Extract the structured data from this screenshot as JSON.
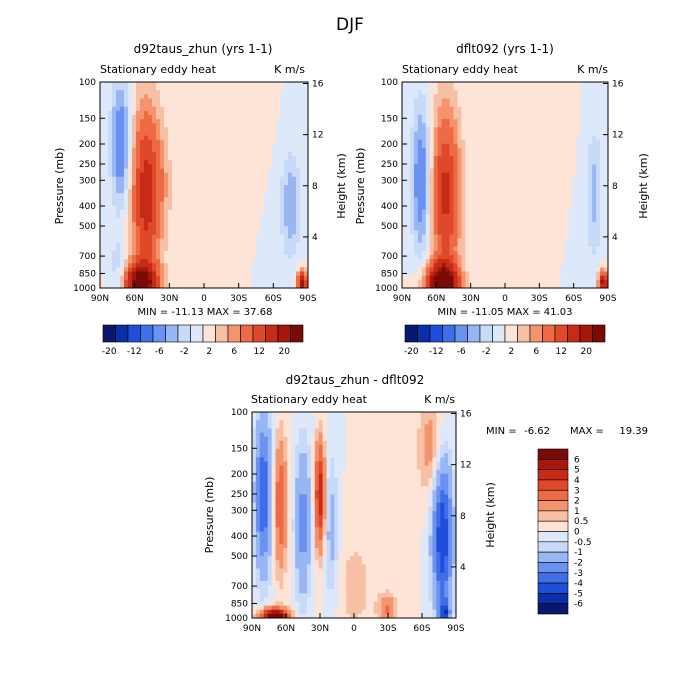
{
  "figure_title": "DJF",
  "stats_diff": {
    "min_label": "MIN = ",
    "min": "-6.62",
    "max_label": "MAX = ",
    "max": "19.39"
  },
  "colors": {
    "blues": [
      "#08186e",
      "#0a2fa8",
      "#1f4fd8",
      "#3f6ee8",
      "#6a92f0",
      "#98b6f4",
      "#c8daf8"
    ],
    "neutral_neg": "#dde8fb",
    "neutral_pos": "#fde4d6",
    "reds": [
      "#f7c0a4",
      "#f4946c",
      "#ee6a45",
      "#e0482a",
      "#c82b15",
      "#a5170b",
      "#7a0a05"
    ]
  },
  "chart_data": [
    {
      "type": "heatmap",
      "id": "d92",
      "title": "d92taus_zhun (yrs 1-1)",
      "subtitle_left": "Stationary eddy heat",
      "subtitle_right": "K m/s",
      "xlabel": "",
      "ylabel": "Pressure (mb)",
      "y2label": "Height (km)",
      "x_ticks": [
        "90N",
        "60N",
        "30N",
        "0",
        "30S",
        "60S",
        "90S"
      ],
      "y_ticks": [
        "100",
        "150",
        "200",
        "250",
        "300",
        "400",
        "500",
        "700",
        "850",
        "1000"
      ],
      "y2_ticks": [
        "16",
        "12",
        "8",
        "4"
      ],
      "xlim": [
        90,
        -90
      ],
      "ylim": [
        1000,
        100
      ],
      "stats": "MIN = -11.13   MAX = 37.68",
      "colorbar_ticks": [
        "-20",
        "-12",
        "-6",
        "-2",
        "2",
        "6",
        "12",
        "20"
      ],
      "features": [
        {
          "lat": 72,
          "p": 200,
          "wlat": 6,
          "wp": 0.5,
          "amp": -9
        },
        {
          "lat": 74,
          "p": 850,
          "wlat": 5,
          "wp": 0.25,
          "amp": -4
        },
        {
          "lat": 50,
          "p": 350,
          "wlat": 9,
          "wp": 0.7,
          "amp": 14
        },
        {
          "lat": 55,
          "p": 950,
          "wlat": 10,
          "wp": 0.15,
          "amp": 22
        },
        {
          "lat": 35,
          "p": 300,
          "wlat": 6,
          "wp": 0.4,
          "amp": 2
        },
        {
          "lat": -75,
          "p": 400,
          "wlat": 6,
          "wp": 0.4,
          "amp": -6
        },
        {
          "lat": -85,
          "p": 950,
          "wlat": 3,
          "wp": 0.1,
          "amp": 18
        },
        {
          "lat": 10,
          "p": 700,
          "wlat": 10,
          "wp": 0.3,
          "amp": 1
        },
        {
          "lat": -40,
          "p": 150,
          "wlat": 10,
          "wp": 0.3,
          "amp": 1
        }
      ]
    },
    {
      "type": "heatmap",
      "id": "dflt",
      "title": "dflt092 (yrs 1-1)",
      "subtitle_left": "Stationary eddy heat",
      "subtitle_right": "K m/s",
      "xlabel": "",
      "ylabel": "Pressure (mb)",
      "y2label": "Height (km)",
      "x_ticks": [
        "90N",
        "60N",
        "30N",
        "0",
        "30S",
        "60S",
        "90S"
      ],
      "y_ticks": [
        "100",
        "150",
        "200",
        "250",
        "300",
        "400",
        "500",
        "700",
        "850",
        "1000"
      ],
      "y2_ticks": [
        "16",
        "12",
        "8",
        "4"
      ],
      "xlim": [
        90,
        -90
      ],
      "ylim": [
        1000,
        100
      ],
      "stats": "MIN = -11.05   MAX = 41.03",
      "colorbar_ticks": [
        "-20",
        "-12",
        "-6",
        "-2",
        "2",
        "6",
        "12",
        "20"
      ],
      "features": [
        {
          "lat": 73,
          "p": 300,
          "wlat": 6,
          "wp": 0.6,
          "amp": -9
        },
        {
          "lat": 52,
          "p": 350,
          "wlat": 9,
          "wp": 0.7,
          "amp": 13
        },
        {
          "lat": 55,
          "p": 950,
          "wlat": 10,
          "wp": 0.15,
          "amp": 24
        },
        {
          "lat": -78,
          "p": 350,
          "wlat": 5,
          "wp": 0.5,
          "amp": -5
        },
        {
          "lat": -86,
          "p": 950,
          "wlat": 3,
          "wp": 0.1,
          "amp": 18
        },
        {
          "lat": 10,
          "p": 700,
          "wlat": 10,
          "wp": 0.3,
          "amp": 1
        },
        {
          "lat": -40,
          "p": 150,
          "wlat": 10,
          "wp": 0.3,
          "amp": 1
        }
      ]
    },
    {
      "type": "heatmap",
      "id": "diff",
      "title": "d92taus_zhun - dflt092",
      "subtitle_left": "Stationary eddy heat",
      "subtitle_right": "K m/s",
      "xlabel": "",
      "ylabel": "Pressure (mb)",
      "y2label": "Height (km)",
      "x_ticks": [
        "90N",
        "60N",
        "30N",
        "0",
        "30S",
        "60S",
        "90S"
      ],
      "y_ticks": [
        "100",
        "150",
        "200",
        "250",
        "300",
        "400",
        "500",
        "700",
        "850",
        "1000"
      ],
      "y2_ticks": [
        "16",
        "12",
        "8",
        "4"
      ],
      "xlim": [
        90,
        -90
      ],
      "ylim": [
        1000,
        100
      ],
      "colorbar_ticks": [
        "6",
        "5",
        "4",
        "3",
        "2",
        "1",
        "0.5",
        "0",
        "-0.5",
        "-1",
        "-2",
        "-3",
        "-4",
        "-5",
        "-6"
      ],
      "features": [
        {
          "lat": 80,
          "p": 250,
          "wlat": 5,
          "wp": 0.6,
          "amp": -4
        },
        {
          "lat": 65,
          "p": 280,
          "wlat": 4,
          "wp": 0.5,
          "amp": 3
        },
        {
          "lat": 45,
          "p": 350,
          "wlat": 5,
          "wp": 0.6,
          "amp": -2.5
        },
        {
          "lat": 30,
          "p": 250,
          "wlat": 3,
          "wp": 0.4,
          "amp": 5
        },
        {
          "lat": 20,
          "p": 400,
          "wlat": 5,
          "wp": 0.6,
          "amp": -1.5
        },
        {
          "lat": 70,
          "p": 980,
          "wlat": 8,
          "wp": 0.06,
          "amp": 8
        },
        {
          "lat": -30,
          "p": 900,
          "wlat": 5,
          "wp": 0.1,
          "amp": 2
        },
        {
          "lat": -78,
          "p": 400,
          "wlat": 6,
          "wp": 0.6,
          "amp": -5
        },
        {
          "lat": -68,
          "p": 150,
          "wlat": 8,
          "wp": 0.4,
          "amp": 1.5
        },
        {
          "lat": -80,
          "p": 950,
          "wlat": 3,
          "wp": 0.1,
          "amp": -4
        },
        {
          "lat": 0,
          "p": 700,
          "wlat": 20,
          "wp": 0.6,
          "amp": 0.6
        }
      ]
    }
  ]
}
